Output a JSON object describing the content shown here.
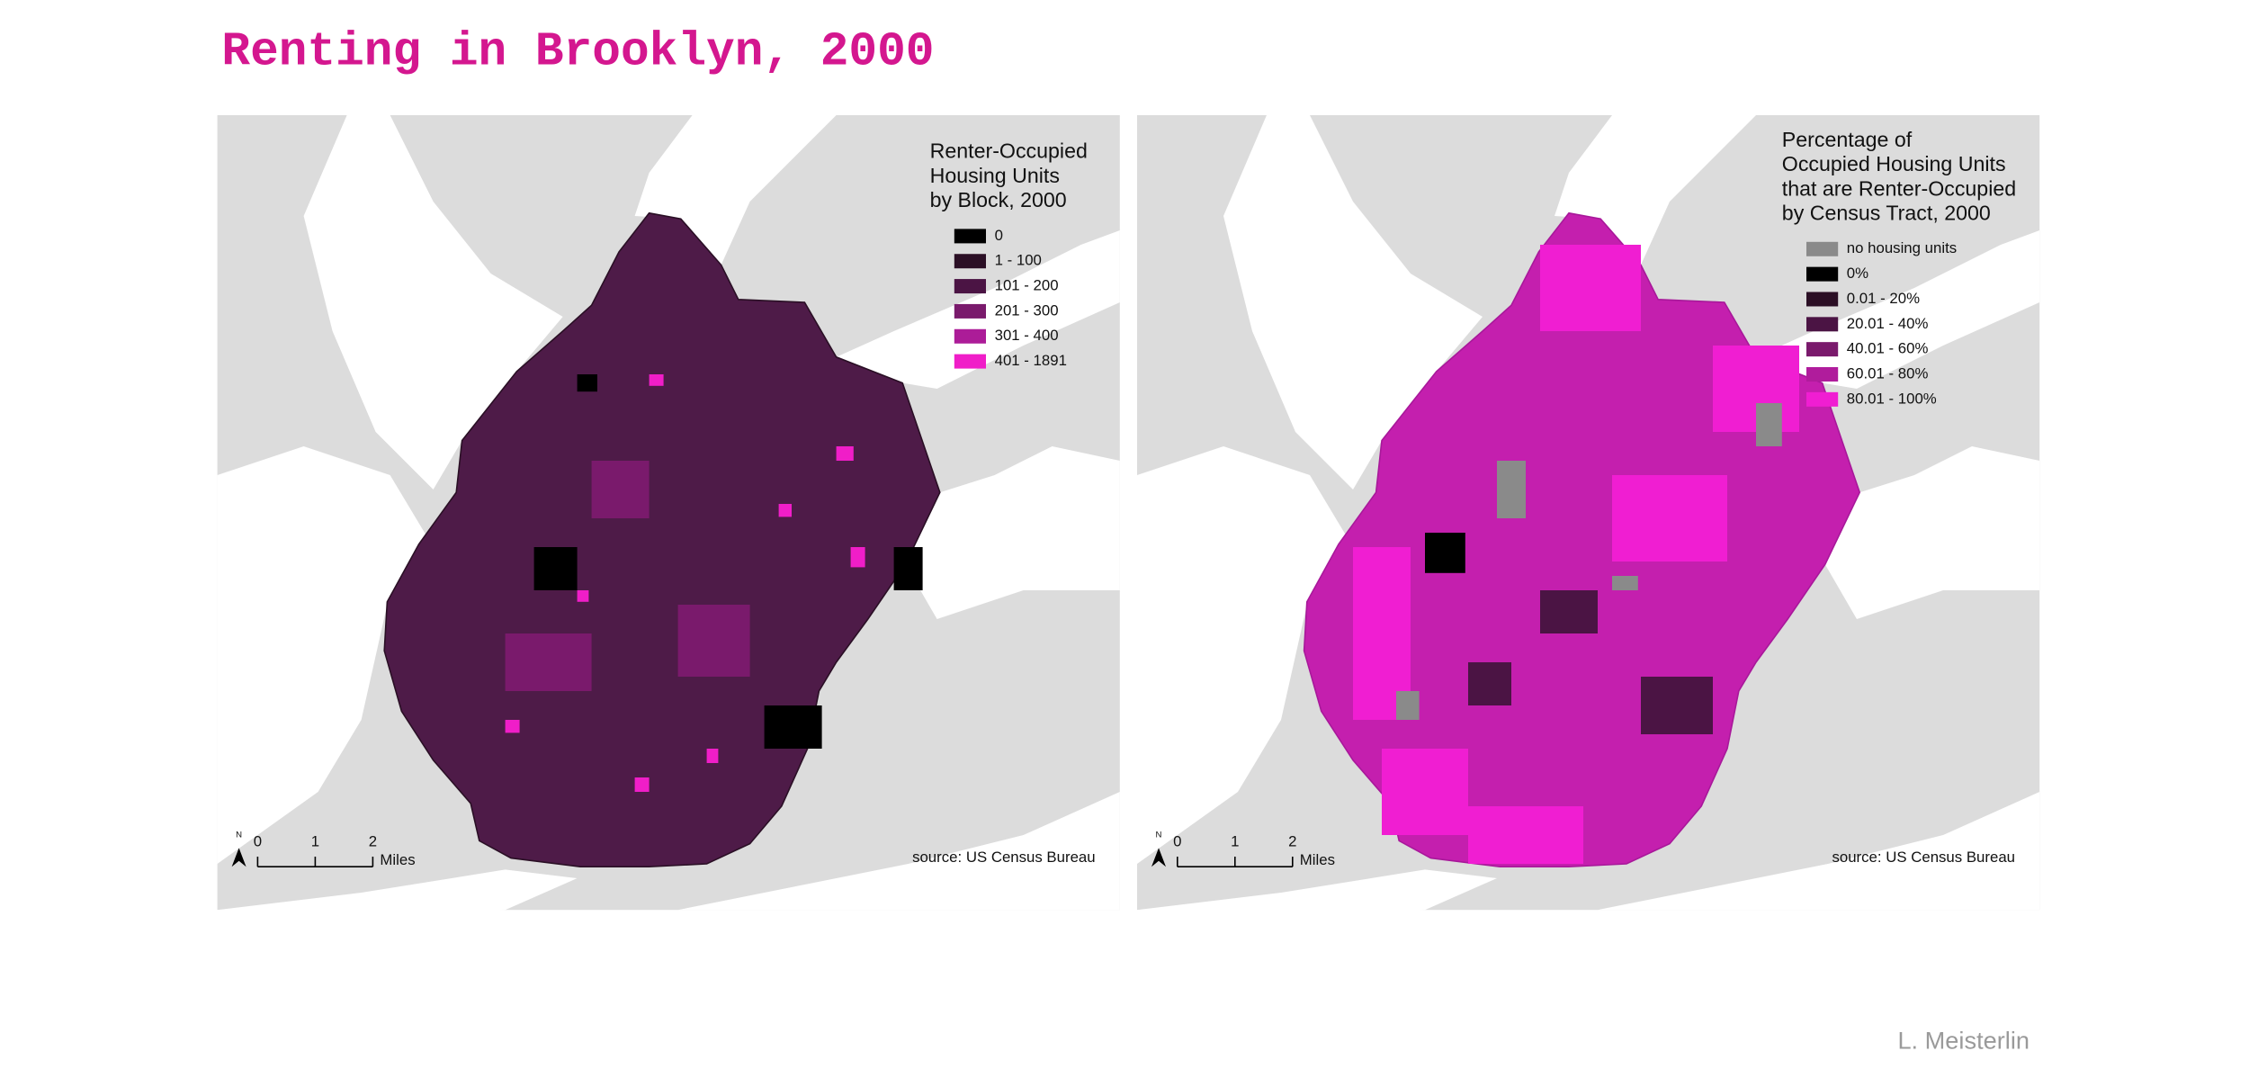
{
  "header": {
    "title": "Renting in Brooklyn, 2000"
  },
  "maps": [
    {
      "legend": {
        "title": [
          "Renter-Occupied",
          "Housing Units",
          "by Block, 2000"
        ],
        "items": [
          {
            "label": "0",
            "color": "#000000"
          },
          {
            "label": "1 - 100",
            "color": "#2b0f25"
          },
          {
            "label": "101 - 200",
            "color": "#4b1444"
          },
          {
            "label": "201 - 300",
            "color": "#7a1a6c"
          },
          {
            "label": "301 - 400",
            "color": "#ac1c98"
          },
          {
            "label": "401 - 1891",
            "color": "#f01ec8"
          }
        ]
      },
      "scale": {
        "north": "N",
        "ticks": [
          "0",
          "1",
          "2"
        ],
        "unit": "Miles"
      },
      "source": "source: US Census Bureau"
    },
    {
      "legend": {
        "title": [
          "Percentage of",
          "Occupied Housing Units",
          "that are Renter-Occupied",
          "by Census Tract, 2000"
        ],
        "items": [
          {
            "label": "no housing units",
            "color": "#8a8a8a"
          },
          {
            "label": "0%",
            "color": "#000000"
          },
          {
            "label": "0.01 - 20%",
            "color": "#2b0f25"
          },
          {
            "label": "20.01 - 40%",
            "color": "#4b1444"
          },
          {
            "label": "40.01 - 60%",
            "color": "#7a1a6c"
          },
          {
            "label": "60.01 - 80%",
            "color": "#b01c9c"
          },
          {
            "label": "80.01 - 100%",
            "color": "#f01ed2"
          }
        ]
      },
      "scale": {
        "north": "N",
        "ticks": [
          "0",
          "1",
          "2"
        ],
        "unit": "Miles"
      },
      "source": "source: US Census Bureau"
    }
  ],
  "footer": {
    "author": "L. Meisterlin"
  }
}
